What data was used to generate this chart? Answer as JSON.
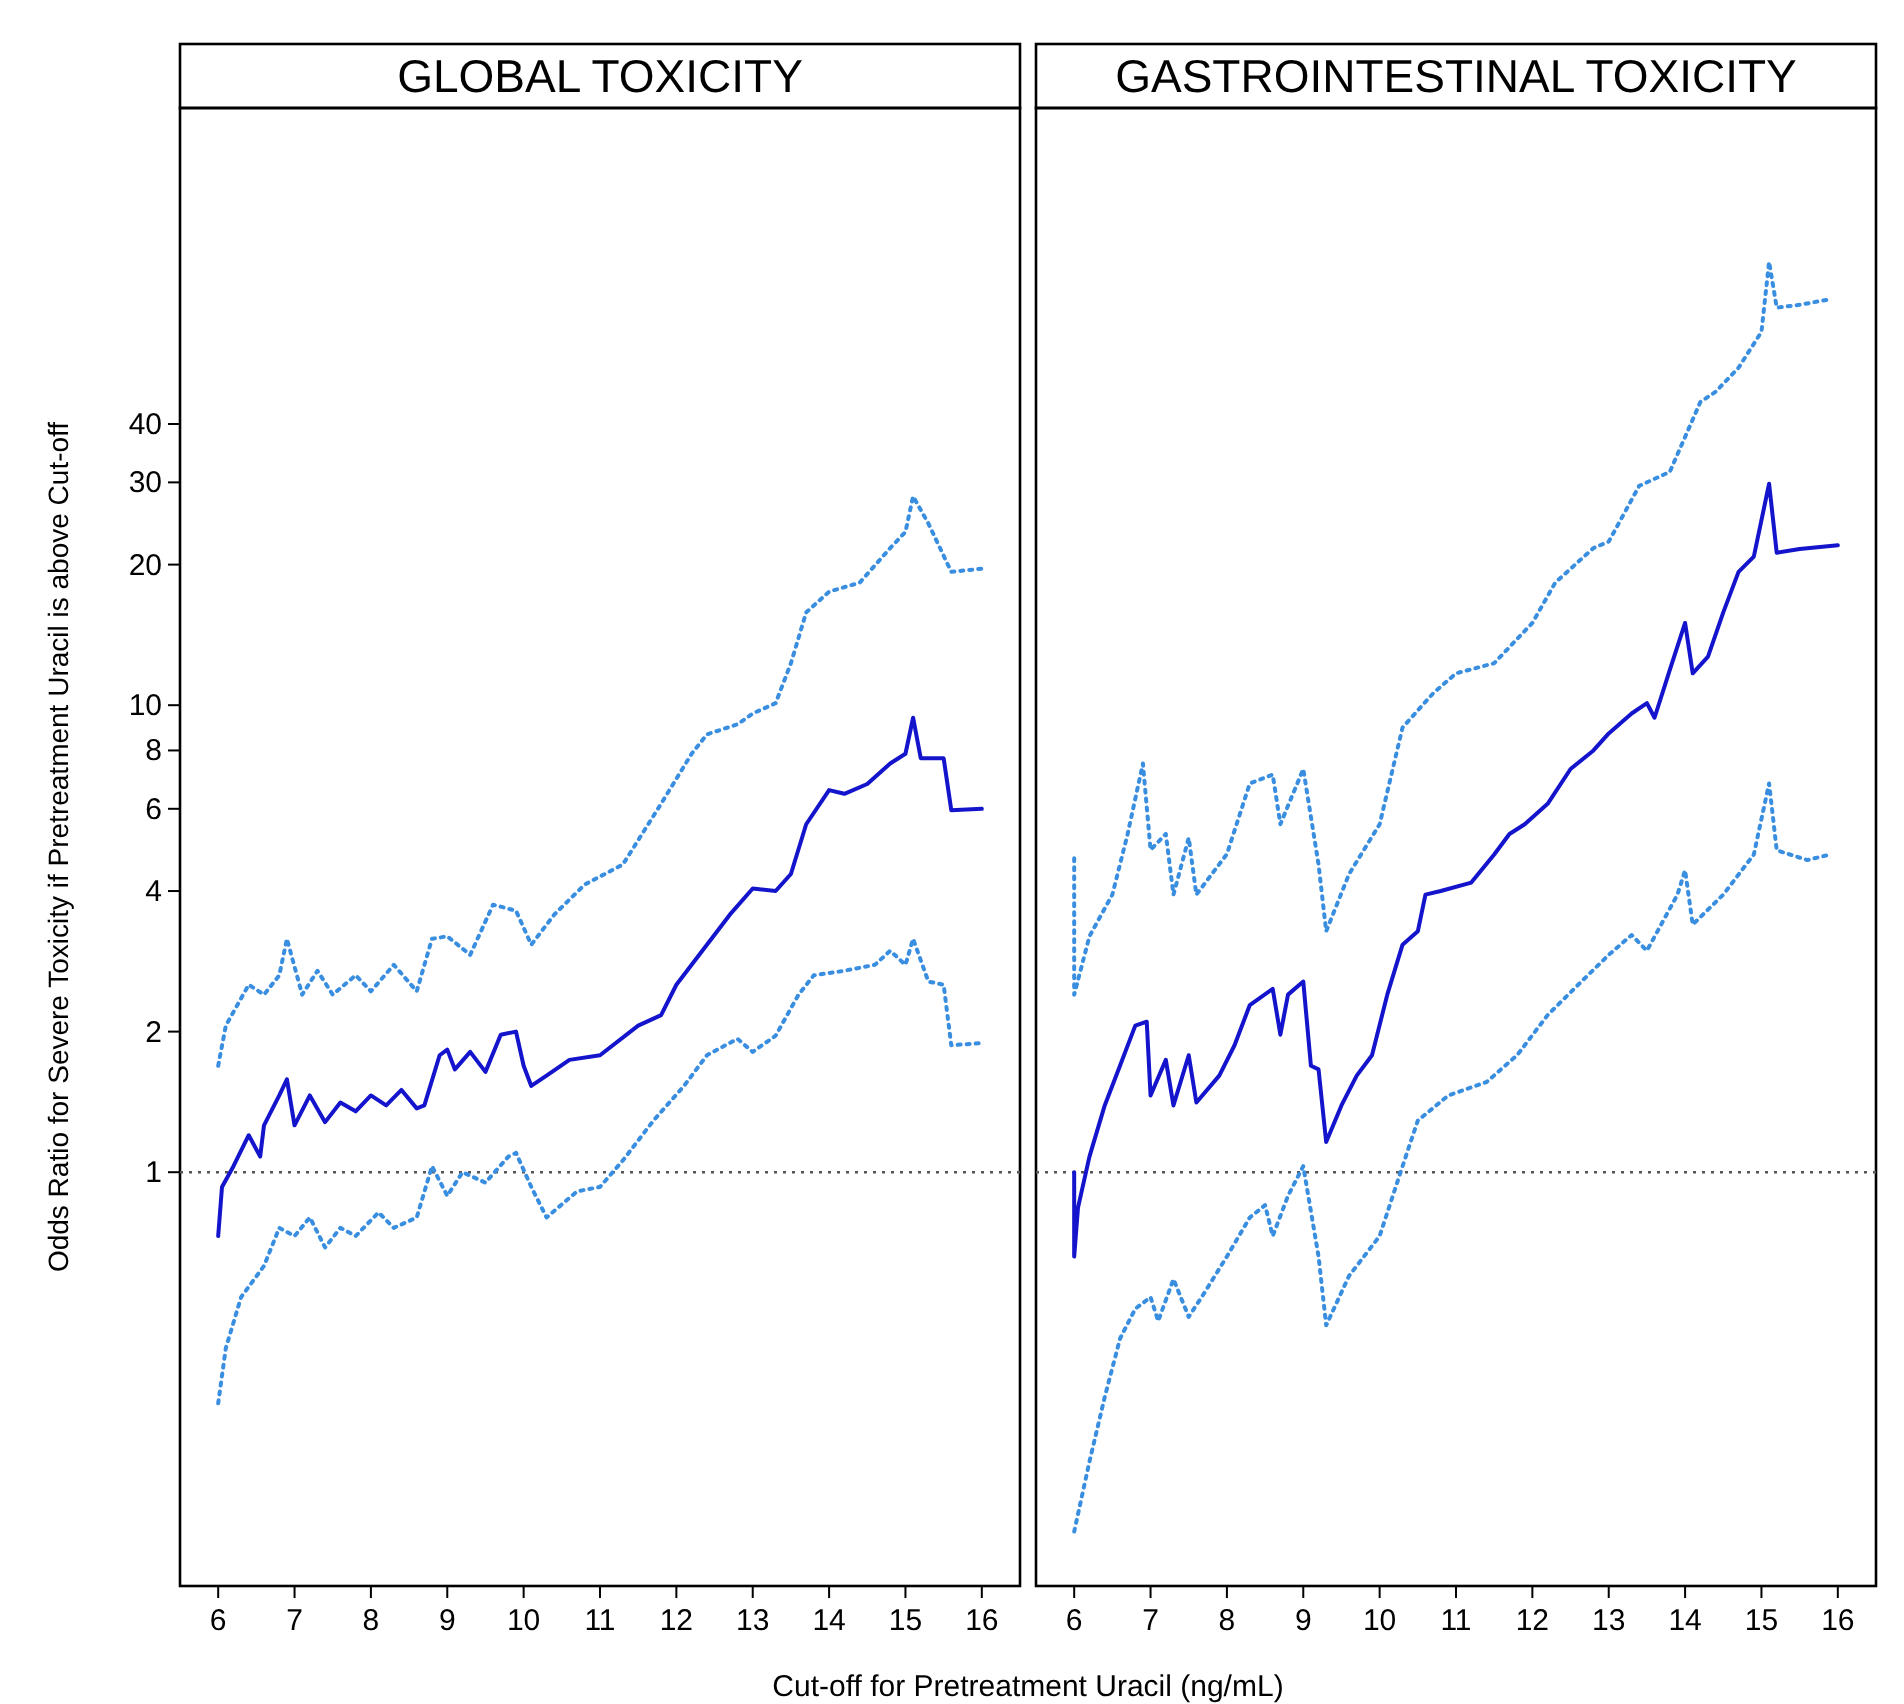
{
  "chart_data": [
    {
      "type": "line",
      "title": "GLOBAL TOXICITY",
      "xlabel": "Cut-off for Pretreatment Uracil (ng/mL)",
      "ylabel": "Odds Ratio for Severe Toxicity if Pretreatment Uracil is above Cut-off",
      "log": "y",
      "grid": false,
      "xlim": [
        5.5,
        16.5
      ],
      "xticks": [
        6,
        7,
        8,
        9,
        10,
        11,
        12,
        13,
        14,
        15,
        16
      ],
      "ylim": [
        0.13,
        190
      ],
      "yticks": [
        1,
        2,
        4,
        6,
        8,
        10,
        20,
        30,
        40
      ],
      "ref_lines": [
        {
          "axis": "y",
          "value": 1,
          "color": "#555555",
          "line_style": "dotted"
        }
      ],
      "series": [
        {
          "color": "#1414cc",
          "line_style": "solid",
          "x": [
            6.0,
            6.05,
            6.2,
            6.4,
            6.55,
            6.6,
            6.8,
            6.9,
            7.0,
            7.2,
            7.4,
            7.6,
            7.8,
            8.0,
            8.2,
            8.4,
            8.6,
            8.7,
            8.9,
            9.0,
            9.1,
            9.3,
            9.5,
            9.7,
            9.9,
            10.0,
            10.1,
            10.3,
            10.6,
            11.0,
            11.5,
            11.8,
            12.0,
            12.2,
            12.4,
            12.7,
            13.0,
            13.3,
            13.5,
            13.7,
            14.0,
            14.2,
            14.5,
            14.8,
            15.0,
            15.1,
            15.2,
            15.5,
            15.6,
            16.0
          ],
          "values": [
            0.73,
            0.93,
            1.03,
            1.2,
            1.08,
            1.26,
            1.46,
            1.58,
            1.26,
            1.46,
            1.28,
            1.41,
            1.35,
            1.46,
            1.39,
            1.5,
            1.37,
            1.39,
            1.78,
            1.83,
            1.66,
            1.81,
            1.64,
            1.97,
            2.0,
            1.69,
            1.53,
            1.61,
            1.74,
            1.78,
            2.06,
            2.17,
            2.52,
            2.78,
            3.07,
            3.56,
            4.05,
            4.0,
            4.35,
            5.56,
            6.58,
            6.46,
            6.78,
            7.5,
            7.87,
            9.4,
            7.7,
            7.7,
            5.96,
            6.0
          ]
        },
        {
          "color": "#3a8ee0",
          "line_style": "dotted",
          "x": [
            6.0,
            6.1,
            6.4,
            6.6,
            6.8,
            6.9,
            7.1,
            7.3,
            7.5,
            7.8,
            8.0,
            8.3,
            8.6,
            8.8,
            9.0,
            9.3,
            9.6,
            9.9,
            10.1,
            10.4,
            10.8,
            11.3,
            11.8,
            12.2,
            12.4,
            12.8,
            13.0,
            13.3,
            13.5,
            13.7,
            14.0,
            14.4,
            14.8,
            15.0,
            15.1,
            15.3,
            15.6,
            16.0
          ],
          "values": [
            1.69,
            2.06,
            2.52,
            2.4,
            2.64,
            3.16,
            2.4,
            2.7,
            2.4,
            2.64,
            2.44,
            2.78,
            2.44,
            3.16,
            3.2,
            2.92,
            3.74,
            3.63,
            3.07,
            3.56,
            4.13,
            4.56,
            6.15,
            7.87,
            8.66,
            9.1,
            9.6,
            10.1,
            12.3,
            15.8,
            17.5,
            18.3,
            21.7,
            23.5,
            28,
            24.5,
            19.3,
            19.6
          ]
        },
        {
          "color": "#3a8ee0",
          "line_style": "dotted",
          "x": [
            6.0,
            6.1,
            6.3,
            6.6,
            6.8,
            7.0,
            7.2,
            7.4,
            7.6,
            7.8,
            8.1,
            8.3,
            8.6,
            8.8,
            9.0,
            9.2,
            9.5,
            9.8,
            9.9,
            10.1,
            10.3,
            10.7,
            11.0,
            11.3,
            11.7,
            12.1,
            12.4,
            12.8,
            13.0,
            13.3,
            13.6,
            13.8,
            14.2,
            14.6,
            14.8,
            15.0,
            15.1,
            15.3,
            15.5,
            15.6,
            16.0
          ],
          "values": [
            0.32,
            0.42,
            0.54,
            0.63,
            0.76,
            0.73,
            0.8,
            0.69,
            0.76,
            0.73,
            0.82,
            0.76,
            0.8,
            1.03,
            0.89,
            1.0,
            0.95,
            1.08,
            1.1,
            0.93,
            0.8,
            0.91,
            0.93,
            1.06,
            1.29,
            1.53,
            1.78,
            1.93,
            1.81,
            1.96,
            2.4,
            2.64,
            2.7,
            2.78,
            2.98,
            2.78,
            3.16,
            2.56,
            2.52,
            1.87,
            1.89
          ]
        }
      ]
    },
    {
      "type": "line",
      "title": "GASTROINTESTINAL TOXICITY",
      "log": "y",
      "grid": false,
      "tick_labels": "x",
      "xlim": [
        5.5,
        16.5
      ],
      "xticks": [
        6,
        7,
        8,
        9,
        10,
        11,
        12,
        13,
        14,
        15,
        16
      ],
      "ylim": [
        0.13,
        190
      ],
      "ref_lines": [
        {
          "axis": "y",
          "value": 1,
          "color": "#555555",
          "line_style": "dotted"
        }
      ],
      "series": [
        {
          "color": "#1414cc",
          "line_style": "solid",
          "x": [
            6.0,
            6.0,
            6.05,
            6.2,
            6.4,
            6.6,
            6.8,
            6.95,
            7.0,
            7.2,
            7.3,
            7.5,
            7.6,
            7.9,
            8.1,
            8.3,
            8.6,
            8.7,
            8.8,
            9.0,
            9.1,
            9.2,
            9.3,
            9.5,
            9.7,
            9.9,
            10.1,
            10.3,
            10.5,
            10.6,
            10.8,
            11.2,
            11.5,
            11.7,
            11.9,
            12.2,
            12.5,
            12.8,
            13.0,
            13.3,
            13.5,
            13.6,
            13.8,
            14.0,
            14.1,
            14.3,
            14.5,
            14.7,
            14.9,
            15.1,
            15.2,
            15.5,
            16.0
          ],
          "values": [
            1.0,
            0.66,
            0.84,
            1.08,
            1.39,
            1.69,
            2.06,
            2.1,
            1.46,
            1.74,
            1.39,
            1.78,
            1.41,
            1.61,
            1.87,
            2.28,
            2.47,
            1.97,
            2.4,
            2.56,
            1.69,
            1.66,
            1.16,
            1.39,
            1.61,
            1.78,
            2.4,
            3.07,
            3.28,
            3.93,
            4.0,
            4.17,
            4.79,
            5.3,
            5.56,
            6.15,
            7.3,
            8.0,
            8.7,
            9.6,
            10.1,
            9.4,
            11.9,
            15.0,
            11.7,
            12.7,
            15.8,
            19.3,
            20.8,
            29.8,
            21.2,
            21.6,
            22
          ]
        },
        {
          "color": "#3a8ee0",
          "line_style": "dotted",
          "x": [
            6.0,
            6.0,
            6.2,
            6.5,
            6.7,
            6.9,
            7.0,
            7.2,
            7.3,
            7.5,
            7.6,
            8.0,
            8.3,
            8.6,
            8.7,
            9.0,
            9.2,
            9.3,
            9.6,
            10.0,
            10.3,
            10.7,
            11.0,
            11.5,
            12.0,
            12.3,
            12.8,
            13.0,
            13.4,
            13.8,
            14.2,
            14.4,
            14.7,
            15.0,
            15.1,
            15.2,
            15.5,
            15.9
          ],
          "values": [
            4.7,
            2.4,
            3.2,
            3.93,
            5.3,
            7.5,
            4.9,
            5.3,
            3.93,
            5.2,
            3.93,
            4.8,
            6.8,
            7.1,
            5.56,
            7.3,
            4.56,
            3.28,
            4.35,
            5.56,
            8.96,
            10.6,
            11.7,
            12.3,
            15.0,
            18.3,
            21.7,
            22.4,
            29.5,
            31.6,
            44.6,
            46.9,
            52.8,
            63,
            89,
            71,
            72,
            74
          ]
        },
        {
          "color": "#3a8ee0",
          "line_style": "dotted",
          "x": [
            6.0,
            6.2,
            6.4,
            6.6,
            6.8,
            7.0,
            7.1,
            7.3,
            7.5,
            7.7,
            8.0,
            8.3,
            8.5,
            8.6,
            8.8,
            9.0,
            9.2,
            9.3,
            9.6,
            10.0,
            10.3,
            10.5,
            10.9,
            11.4,
            11.8,
            12.2,
            12.6,
            13.0,
            13.3,
            13.5,
            13.9,
            14.0,
            14.1,
            14.5,
            14.9,
            15.1,
            15.2,
            15.6,
            15.9
          ],
          "values": [
            0.17,
            0.24,
            0.33,
            0.44,
            0.51,
            0.54,
            0.48,
            0.59,
            0.49,
            0.55,
            0.66,
            0.8,
            0.85,
            0.73,
            0.89,
            1.03,
            0.66,
            0.47,
            0.6,
            0.73,
            1.03,
            1.29,
            1.46,
            1.56,
            1.78,
            2.17,
            2.52,
            2.92,
            3.22,
            2.98,
            3.93,
            4.43,
            3.39,
            3.93,
            4.79,
            6.8,
            4.89,
            4.66,
            4.79
          ]
        }
      ]
    }
  ]
}
